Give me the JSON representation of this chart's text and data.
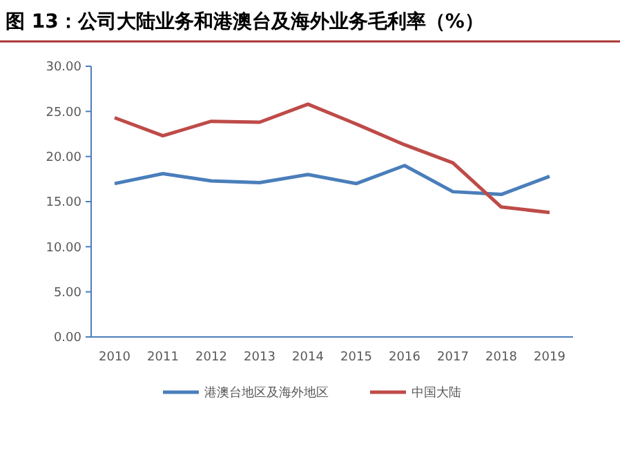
{
  "chart_data": {
    "type": "line",
    "title": "图 13：公司大陆业务和港澳台及海外业务毛利率（%）",
    "categories": [
      "2010",
      "2011",
      "2012",
      "2013",
      "2014",
      "2015",
      "2016",
      "2017",
      "2018",
      "2019"
    ],
    "series": [
      {
        "name": "港澳台地区及海外地区",
        "color": "#4a7ebb",
        "values": [
          17.0,
          18.1,
          17.3,
          17.1,
          18.0,
          17.0,
          19.0,
          16.1,
          15.8,
          17.8
        ]
      },
      {
        "name": "中国大陆",
        "color": "#be4b48",
        "values": [
          24.3,
          22.3,
          23.9,
          23.8,
          25.8,
          23.6,
          21.3,
          19.3,
          14.4,
          13.8
        ]
      }
    ],
    "ylim": [
      0,
      30
    ],
    "yticks": [
      {
        "value": 0,
        "label": "0.00"
      },
      {
        "value": 5,
        "label": "5.00"
      },
      {
        "value": 10,
        "label": "10.00"
      },
      {
        "value": 15,
        "label": "15.00"
      },
      {
        "value": 20,
        "label": "20.00"
      },
      {
        "value": 25,
        "label": "25.00"
      },
      {
        "value": 30,
        "label": "30.00"
      }
    ],
    "grid": false,
    "legend": "bottom",
    "marker": "none",
    "line_style": "solid"
  }
}
